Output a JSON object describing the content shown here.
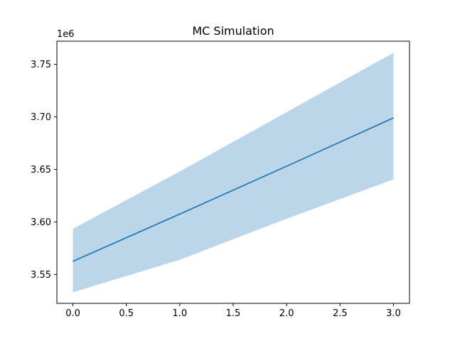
{
  "chart_data": {
    "type": "line",
    "title": "MC Simulation",
    "xlabel": "",
    "ylabel": "",
    "y_offset_label": "1e6",
    "x": [
      0,
      1,
      2,
      3
    ],
    "series": [
      {
        "values": [
          3.5625,
          3.6075,
          3.653,
          3.699
        ],
        "band_lower": [
          3.533,
          3.564,
          3.603,
          3.6405
        ],
        "band_upper": [
          3.5935,
          3.648,
          3.7045,
          3.761
        ],
        "line_color": "#1f77b4",
        "band_color": "#1f77b4",
        "band_opacity": 0.3
      }
    ],
    "xlim": [
      -0.15,
      3.15
    ],
    "ylim": [
      3.5225,
      3.772
    ],
    "x_ticks": [
      0.0,
      0.5,
      1.0,
      1.5,
      2.0,
      2.5,
      3.0
    ],
    "x_tick_labels": [
      "0.0",
      "0.5",
      "1.0",
      "1.5",
      "2.0",
      "2.5",
      "3.0"
    ],
    "y_ticks": [
      3.55,
      3.6,
      3.65,
      3.7,
      3.75
    ],
    "y_tick_labels": [
      "3.55",
      "3.60",
      "3.65",
      "3.70",
      "3.75"
    ],
    "grid": false
  }
}
